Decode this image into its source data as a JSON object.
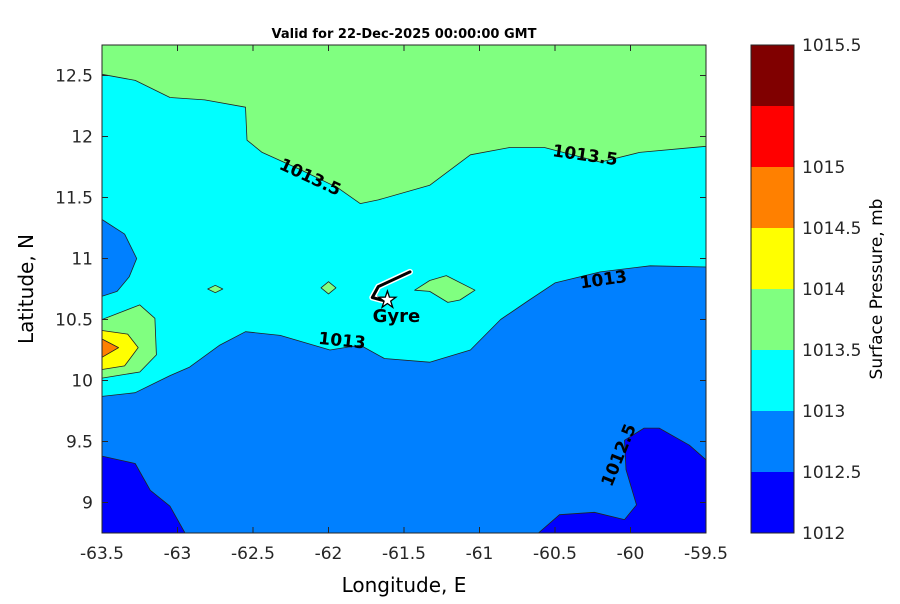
{
  "chart_data": {
    "type": "contour",
    "title": "Valid for 22-Dec-2025 00:00:00 GMT",
    "xlabel": "Longitude, E",
    "ylabel": "Latitude, N",
    "xlim": [
      -63.5,
      -59.5
    ],
    "ylim": [
      8.75,
      12.75
    ],
    "xticks": [
      -63.5,
      -63,
      -62.5,
      -62,
      -61.5,
      -61,
      -60.5,
      -60,
      -59.5
    ],
    "xtick_labels": [
      "-63.5",
      "-63",
      "-62.5",
      "-62",
      "-61.5",
      "-61",
      "-60.5",
      "-60",
      "-59.5"
    ],
    "yticks": [
      9,
      9.5,
      10,
      10.5,
      11,
      11.5,
      12,
      12.5
    ],
    "ytick_labels": [
      "9",
      "9.5",
      "10",
      "10.5",
      "11",
      "11.5",
      "12",
      "12.5"
    ],
    "colorbar": {
      "label": "Surface Pressure, mb",
      "levels": [
        1012,
        1012.5,
        1013,
        1013.5,
        1014,
        1014.5,
        1015,
        1015.5
      ],
      "level_labels": [
        "1012",
        "1012.5",
        "1013",
        "1013.5",
        "1014",
        "1014.5",
        "1015",
        "1015.5"
      ],
      "colors": [
        "#0000FF",
        "#0080FF",
        "#00FFFF",
        "#80FF80",
        "#FFFF00",
        "#FF8000",
        "#FF0000",
        "#800000"
      ]
    },
    "background_level": "1013-1013.5",
    "regions": [
      {
        "level": "1013.5-1014",
        "color": "#80FF80",
        "points": [
          [
            -63.5,
            12.75
          ],
          [
            -63.5,
            12.51
          ],
          [
            -63.28,
            12.46
          ],
          [
            -63.05,
            12.32
          ],
          [
            -62.82,
            12.3
          ],
          [
            -62.55,
            12.24
          ],
          [
            -62.54,
            11.97
          ],
          [
            -62.44,
            11.87
          ],
          [
            -62.19,
            11.73
          ],
          [
            -61.94,
            11.58
          ],
          [
            -61.79,
            11.45
          ],
          [
            -61.67,
            11.48
          ],
          [
            -61.33,
            11.6
          ],
          [
            -61.06,
            11.85
          ],
          [
            -60.8,
            11.91
          ],
          [
            -60.57,
            11.91
          ],
          [
            -60.2,
            11.79
          ],
          [
            -59.94,
            11.87
          ],
          [
            -59.5,
            11.92
          ],
          [
            -59.5,
            12.75
          ]
        ]
      },
      {
        "level": "1012.5-1013",
        "color": "#0080FF",
        "points": [
          [
            -63.5,
            9.87
          ],
          [
            -63.28,
            9.9
          ],
          [
            -63.05,
            10.04
          ],
          [
            -62.92,
            10.11
          ],
          [
            -62.72,
            10.29
          ],
          [
            -62.55,
            10.4
          ],
          [
            -62.32,
            10.37
          ],
          [
            -61.99,
            10.25
          ],
          [
            -61.79,
            10.29
          ],
          [
            -61.63,
            10.18
          ],
          [
            -61.33,
            10.15
          ],
          [
            -61.06,
            10.25
          ],
          [
            -60.86,
            10.5
          ],
          [
            -60.67,
            10.66
          ],
          [
            -60.5,
            10.8
          ],
          [
            -60.2,
            10.89
          ],
          [
            -59.87,
            10.94
          ],
          [
            -59.5,
            10.93
          ],
          [
            -59.5,
            8.75
          ],
          [
            -63.5,
            8.75
          ]
        ]
      },
      {
        "level": "1012.5-1013",
        "color": "#0080FF",
        "points": [
          [
            -63.5,
            11.32
          ],
          [
            -63.35,
            11.2
          ],
          [
            -63.27,
            11.0
          ],
          [
            -63.32,
            10.85
          ],
          [
            -63.4,
            10.73
          ],
          [
            -63.5,
            10.69
          ]
        ]
      },
      {
        "level": "1012-1012.5",
        "color": "#0000FF",
        "points": [
          [
            -63.5,
            9.38
          ],
          [
            -63.28,
            9.32
          ],
          [
            -63.18,
            9.1
          ],
          [
            -63.05,
            8.97
          ],
          [
            -62.95,
            8.75
          ],
          [
            -63.5,
            8.75
          ]
        ]
      },
      {
        "level": "1012-1012.5",
        "color": "#0000FF",
        "points": [
          [
            -60.61,
            8.75
          ],
          [
            -60.47,
            8.9
          ],
          [
            -60.24,
            8.92
          ],
          [
            -60.04,
            8.86
          ],
          [
            -59.96,
            8.98
          ],
          [
            -60.03,
            9.27
          ],
          [
            -60.04,
            9.51
          ],
          [
            -59.91,
            9.61
          ],
          [
            -59.81,
            9.61
          ],
          [
            -59.61,
            9.47
          ],
          [
            -59.5,
            9.35
          ],
          [
            -59.5,
            8.75
          ]
        ]
      },
      {
        "level": "1013.5-1014",
        "color": "#80FF80",
        "points": [
          [
            -63.5,
            10.5
          ],
          [
            -63.25,
            10.62
          ],
          [
            -63.15,
            10.51
          ],
          [
            -63.14,
            10.21
          ],
          [
            -63.25,
            10.07
          ],
          [
            -63.5,
            10.02
          ]
        ]
      },
      {
        "level": "1014-1014.5",
        "color": "#FFFF00",
        "points": [
          [
            -63.5,
            10.41
          ],
          [
            -63.33,
            10.38
          ],
          [
            -63.26,
            10.27
          ],
          [
            -63.35,
            10.12
          ],
          [
            -63.5,
            10.09
          ]
        ]
      },
      {
        "level": "1014.5-1015",
        "color": "#FF8000",
        "points": [
          [
            -63.5,
            10.34
          ],
          [
            -63.39,
            10.27
          ],
          [
            -63.5,
            10.19
          ]
        ]
      },
      {
        "level": "1013.5-1014",
        "color": "#80FF80",
        "points": [
          [
            -61.43,
            10.74
          ],
          [
            -61.33,
            10.82
          ],
          [
            -61.22,
            10.86
          ],
          [
            -61.03,
            10.74
          ],
          [
            -61.13,
            10.66
          ],
          [
            -61.21,
            10.64
          ],
          [
            -61.33,
            10.73
          ]
        ]
      },
      {
        "level": "1013.5-1014",
        "color": "#80FF80",
        "points": [
          [
            -62.8,
            10.75
          ],
          [
            -62.75,
            10.78
          ],
          [
            -62.7,
            10.75
          ],
          [
            -62.75,
            10.72
          ]
        ]
      },
      {
        "level": "1013.5-1014",
        "color": "#80FF80",
        "points": [
          [
            -62.05,
            10.76
          ],
          [
            -62.0,
            10.81
          ],
          [
            -61.95,
            10.76
          ],
          [
            -62.0,
            10.71
          ]
        ]
      }
    ],
    "contour_labels": [
      {
        "text": "1013.5",
        "lon": -62.12,
        "lat": 11.67,
        "angle": 25
      },
      {
        "text": "1013.5",
        "lon": -60.3,
        "lat": 11.85,
        "angle": 8
      },
      {
        "text": "1013",
        "lon": -60.18,
        "lat": 10.83,
        "angle": -8
      },
      {
        "text": "1013",
        "lon": -61.91,
        "lat": 10.33,
        "angle": 6
      },
      {
        "text": "1012.5",
        "lon": -60.08,
        "lat": 9.39,
        "angle": -68
      }
    ],
    "track": [
      [
        -61.46,
        10.89
      ],
      [
        -61.67,
        10.77
      ],
      [
        -61.71,
        10.68
      ],
      [
        -61.62,
        10.65
      ]
    ],
    "marker": {
      "label": "Gyre",
      "lon": -61.61,
      "lat": 10.66,
      "symbol": "star"
    }
  }
}
